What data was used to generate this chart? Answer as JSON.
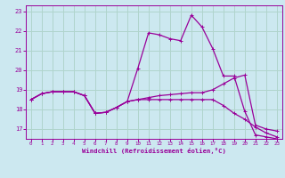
{
  "xlabel": "Windchill (Refroidissement éolien,°C)",
  "bg_color": "#cce8f0",
  "grid_color": "#b0d4cc",
  "line_color": "#990099",
  "hours": [
    0,
    1,
    2,
    3,
    4,
    5,
    6,
    7,
    8,
    9,
    10,
    11,
    12,
    13,
    14,
    15,
    16,
    17,
    18,
    19,
    20,
    21,
    22,
    23
  ],
  "curve1": [
    18.5,
    18.8,
    18.9,
    18.9,
    18.9,
    18.7,
    17.8,
    17.85,
    18.1,
    18.4,
    20.1,
    21.9,
    21.8,
    21.6,
    21.5,
    22.8,
    22.2,
    21.1,
    19.7,
    19.7,
    17.9,
    16.7,
    16.6,
    16.5
  ],
  "curve2": [
    18.5,
    18.8,
    18.9,
    18.9,
    18.9,
    18.7,
    17.8,
    17.85,
    18.1,
    18.4,
    18.5,
    18.6,
    18.7,
    18.75,
    18.8,
    18.85,
    18.85,
    19.0,
    19.3,
    19.6,
    19.75,
    17.2,
    17.0,
    16.9
  ],
  "curve3": [
    18.5,
    18.8,
    18.9,
    18.9,
    18.9,
    18.7,
    17.8,
    17.85,
    18.1,
    18.4,
    18.5,
    18.5,
    18.5,
    18.5,
    18.5,
    18.5,
    18.5,
    18.5,
    18.2,
    17.8,
    17.5,
    17.1,
    16.8,
    16.6
  ],
  "ylim": [
    16.5,
    23.3
  ],
  "xlim": [
    -0.5,
    23.5
  ],
  "yticks": [
    17,
    18,
    19,
    20,
    21,
    22,
    23
  ],
  "xticks": [
    0,
    1,
    2,
    3,
    4,
    5,
    6,
    7,
    8,
    9,
    10,
    11,
    12,
    13,
    14,
    15,
    16,
    17,
    18,
    19,
    20,
    21,
    22,
    23
  ]
}
